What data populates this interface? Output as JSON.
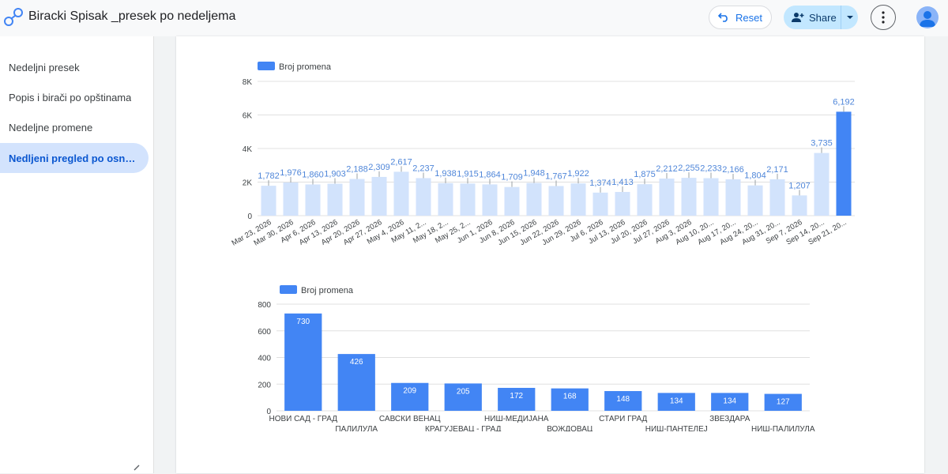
{
  "app": {
    "title": "Biracki Spisak _presek po nedeljema"
  },
  "toolbar": {
    "reset_label": "Reset",
    "share_label": "Share"
  },
  "sidebar": {
    "items": [
      {
        "label": "Nedeljni presek",
        "active": false
      },
      {
        "label": "Popis i birači po opštinama",
        "active": false
      },
      {
        "label": "Nedeljne promene",
        "active": false
      },
      {
        "label": "Nedljeni pregled po osnovu…",
        "active": true
      }
    ]
  },
  "colors": {
    "accent": "#4285f4",
    "light_bar": "#d2e3fc",
    "label_blue": "#4f86d9",
    "grid": "#e0e0e0"
  },
  "chart_data": [
    {
      "type": "bar",
      "legend": {
        "label": "Broj promena",
        "position": "top-left"
      },
      "ylim": [
        0,
        8000
      ],
      "yticks": [
        0,
        2000,
        4000,
        6000,
        8000
      ],
      "ytick_labels": [
        "0",
        "2K",
        "4K",
        "6K",
        "8K"
      ],
      "categories": [
        "Mar 23, 2026",
        "Mar 30, 2026",
        "Apr 6, 2026",
        "Apr 13, 2026",
        "Apr 20, 2026",
        "Apr 27, 2026",
        "May 4, 2026",
        "May 11, 2...",
        "May 18, 2...",
        "May 25, 2...",
        "Jun 1, 2026",
        "Jun 8, 2026",
        "Jun 15, 2026",
        "Jun 22, 2026",
        "Jun 29, 2026",
        "Jul 6, 2026",
        "Jul 13, 2026",
        "Jul 20, 2026",
        "Jul 27, 2026",
        "Aug 3, 2026",
        "Aug 10, 20...",
        "Aug 17, 20...",
        "Aug 24, 20...",
        "Aug 31, 20...",
        "Sep 7, 2026",
        "Sep 14, 20...",
        "Sep 21, 20..."
      ],
      "values": [
        1782,
        1976,
        1860,
        1903,
        2188,
        2309,
        2617,
        2237,
        1938,
        1915,
        1864,
        1709,
        1948,
        1767,
        1922,
        1374,
        1413,
        1875,
        2212,
        2255,
        2233,
        2166,
        1804,
        2171,
        1207,
        3735,
        6192
      ],
      "value_labels": [
        "1,782",
        "1,976",
        "1,860",
        "1,903",
        "2,188",
        "2,309",
        "2,617",
        "2,237",
        "1,938",
        "1,915",
        "1,864",
        "1,709",
        "1,948",
        "1,767",
        "1,922",
        "1,374",
        "1,413",
        "1,875",
        "2,212",
        "2,255",
        "2,233",
        "2,166",
        "1,804",
        "2,171",
        "1,207",
        "3,735",
        "6,192"
      ],
      "highlight_last": true,
      "grid": true
    },
    {
      "type": "bar",
      "legend": {
        "label": "Broj promena",
        "position": "top-left"
      },
      "ylim": [
        0,
        800
      ],
      "yticks": [
        0,
        200,
        400,
        600,
        800
      ],
      "ytick_labels": [
        "0",
        "200",
        "400",
        "600",
        "800"
      ],
      "categories": [
        "НОВИ САД - ГРАД",
        "ПАЛИЛУЛА",
        "САВСКИ ВЕНАЦ",
        "КРАГУЈЕВАЦ - ГРАД",
        "НИШ-МЕДИЈАНА",
        "ВОЖДОВАЦ",
        "СТАРИ ГРАД",
        "НИШ-ПАНТЕЛЕЈ",
        "ЗВЕЗДАРА",
        "НИШ-ПАЛИЛУЛА"
      ],
      "values": [
        730,
        426,
        209,
        205,
        172,
        168,
        148,
        134,
        134,
        127
      ],
      "value_labels": [
        "730",
        "426",
        "209",
        "205",
        "172",
        "168",
        "148",
        "134",
        "134",
        "127"
      ],
      "grid": true
    }
  ]
}
